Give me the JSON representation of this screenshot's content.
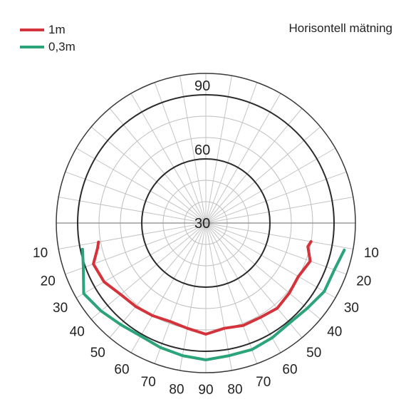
{
  "chart_data": {
    "type": "line",
    "projection": "polar",
    "title": "Horisontell mätning",
    "radial_ticks": [
      30,
      60,
      90
    ],
    "radial_range": [
      30,
      100
    ],
    "angle_ticks": {
      "left": [
        "10",
        "20",
        "30",
        "40",
        "50",
        "60",
        "70",
        "80"
      ],
      "right": [
        "10",
        "20",
        "30",
        "40",
        "50",
        "60",
        "70",
        "80"
      ],
      "bottom": "90"
    },
    "angle_values": [
      10,
      20,
      30,
      40,
      50,
      60,
      70,
      80
    ],
    "series": [
      {
        "name": "1m",
        "color": "#d5333b",
        "points": [
          [
            -10,
            80
          ],
          [
            -13,
            79
          ],
          [
            -20,
            82
          ],
          [
            -30,
            80
          ],
          [
            -40,
            81
          ],
          [
            -50,
            82
          ],
          [
            -60,
            81
          ],
          [
            -70,
            81
          ],
          [
            -80,
            80
          ],
          [
            -90,
            82
          ],
          [
            -100,
            80
          ],
          [
            -110,
            79
          ],
          [
            -120,
            80
          ],
          [
            -130,
            81
          ],
          [
            -140,
            82
          ],
          [
            -150,
            85
          ],
          [
            -160,
            86
          ],
          [
            -167,
            82
          ],
          [
            -170,
            81
          ]
        ]
      },
      {
        "name": "0,3m",
        "color": "#2aa478",
        "points": [
          [
            -11,
            96
          ],
          [
            -20,
            94
          ],
          [
            -30,
            94
          ],
          [
            -40,
            92
          ],
          [
            -50,
            91
          ],
          [
            -60,
            92
          ],
          [
            -70,
            93
          ],
          [
            -80,
            93
          ],
          [
            -90,
            94
          ],
          [
            -100,
            93
          ],
          [
            -110,
            92
          ],
          [
            -120,
            91
          ],
          [
            -130,
            92
          ],
          [
            -140,
            94
          ],
          [
            -150,
            96
          ],
          [
            -160,
            91
          ],
          [
            -168,
            89
          ]
        ]
      }
    ]
  }
}
